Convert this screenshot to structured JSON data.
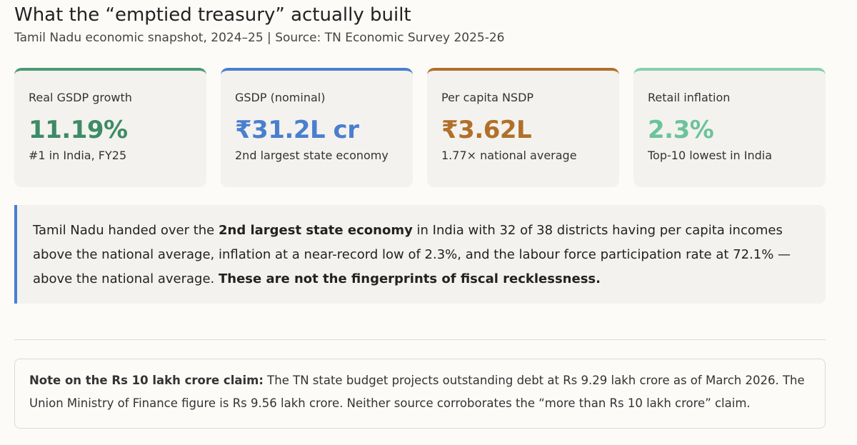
{
  "header": {
    "title": "What the “emptied treasury” actually built",
    "subtitle": "Tamil Nadu economic snapshot, 2024–25 | Source: TN Economic Survey 2025-26"
  },
  "cards": [
    {
      "label": "Real GSDP growth",
      "value": "11.19%",
      "note": "#1 in India, FY25",
      "color": "#3d8b66",
      "accent": "#4a9a72"
    },
    {
      "label": "GSDP (nominal)",
      "value": "₹31.2L cr",
      "note": "2nd largest state economy",
      "color": "#4a7fcf",
      "accent": "#4a7fcf"
    },
    {
      "label": "Per capita NSDP",
      "value": "₹3.62L",
      "note": "1.77× national average",
      "color": "#b0702a",
      "accent": "#b0702a"
    },
    {
      "label": "Retail inflation",
      "value": "2.3%",
      "note": "Top-10 lowest in India",
      "color": "#6cc39b",
      "accent": "#86d0ad"
    }
  ],
  "callout": {
    "segments": [
      {
        "text": "Tamil Nadu handed over the ",
        "bold": false
      },
      {
        "text": "2nd largest state economy",
        "bold": true
      },
      {
        "text": " in India with 32 of 38 districts having per capita incomes above the national average, inflation at a near-record low of 2.3%, and the labour force participation rate at 72.1% — above the national average. ",
        "bold": false
      },
      {
        "text": "These are not the fingerprints of fiscal recklessness.",
        "bold": true
      }
    ]
  },
  "note": {
    "label": "Note on the Rs 10 lakh crore claim:",
    "text": " The TN state budget projects outstanding debt at Rs 9.29 lakh crore as of March 2026. The Union Ministry of Finance figure is Rs 9.56 lakh crore. Neither source corroborates the “more than Rs 10 lakh crore” claim."
  }
}
